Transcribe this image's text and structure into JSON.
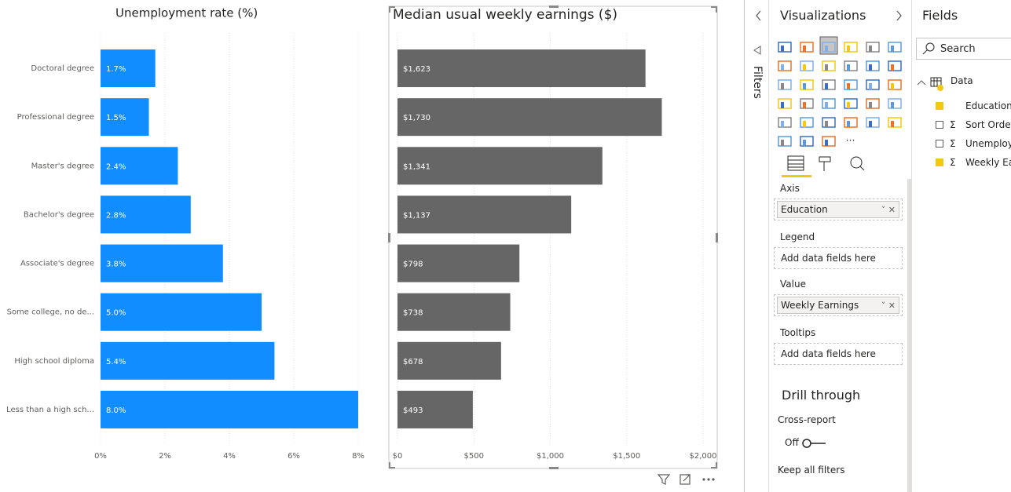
{
  "chart_data": [
    {
      "type": "bar",
      "orientation": "horizontal",
      "title": "Unemployment rate (%)",
      "categories": [
        "Doctoral degree",
        "Professional degree",
        "Master's degree",
        "Bachelor's degree",
        "Associate's degree",
        "Some college, no de...",
        "High school diploma",
        "Less than a high sch..."
      ],
      "values": [
        1.7,
        1.5,
        2.4,
        2.8,
        3.8,
        5.0,
        5.4,
        8.0
      ],
      "value_labels": [
        "1.7%",
        "1.5%",
        "2.4%",
        "2.8%",
        "3.8%",
        "5.0%",
        "5.4%",
        "8.0%"
      ],
      "color": "#118dff",
      "xlim": [
        0,
        8
      ],
      "xticks": [
        {
          "value": 0,
          "label": "0%"
        },
        {
          "value": 2,
          "label": "2%"
        },
        {
          "value": 4,
          "label": "4%"
        },
        {
          "value": 6,
          "label": "6%"
        },
        {
          "value": 8,
          "label": "8%"
        }
      ],
      "grid": true
    },
    {
      "type": "bar",
      "orientation": "horizontal",
      "title": "Median usual weekly earnings ($)",
      "values": [
        1623,
        1730,
        1341,
        1137,
        798,
        738,
        678,
        493
      ],
      "value_labels": [
        "$1,623",
        "$1,730",
        "$1,341",
        "$1,137",
        "$798",
        "$738",
        "$678",
        "$493"
      ],
      "color": "#666666",
      "xlim": [
        0,
        2000
      ],
      "xticks": [
        {
          "value": 0,
          "label": "$0"
        },
        {
          "value": 500,
          "label": "$500"
        },
        {
          "value": 1000,
          "label": "$1,000"
        },
        {
          "value": 1500,
          "label": "$1,500"
        },
        {
          "value": 2000,
          "label": "$2,000"
        }
      ],
      "grid": true
    }
  ],
  "filters_pane": {
    "label": "Filters"
  },
  "visualizations_pane": {
    "title": "Visualizations",
    "wells": [
      {
        "label": "Axis",
        "field": "Education"
      },
      {
        "label": "Legend",
        "placeholder": "Add data fields here"
      },
      {
        "label": "Value",
        "field": "Weekly Earnings"
      },
      {
        "label": "Tooltips",
        "placeholder": "Add data fields here"
      }
    ],
    "drill_through": {
      "title": "Drill through",
      "cross_report": "Cross-report",
      "toggle": "Off",
      "keep_all_filters": "Keep all filters"
    }
  },
  "fields_pane": {
    "title": "Fields",
    "search": "Search",
    "table": "Data",
    "fields": [
      {
        "name": "Education",
        "checked": true,
        "measure": false
      },
      {
        "name": "Sort Order",
        "checked": false,
        "measure": true
      },
      {
        "name": "Unemployment",
        "checked": false,
        "measure": true
      },
      {
        "name": "Weekly Earnings",
        "checked": true,
        "measure": true
      }
    ]
  }
}
